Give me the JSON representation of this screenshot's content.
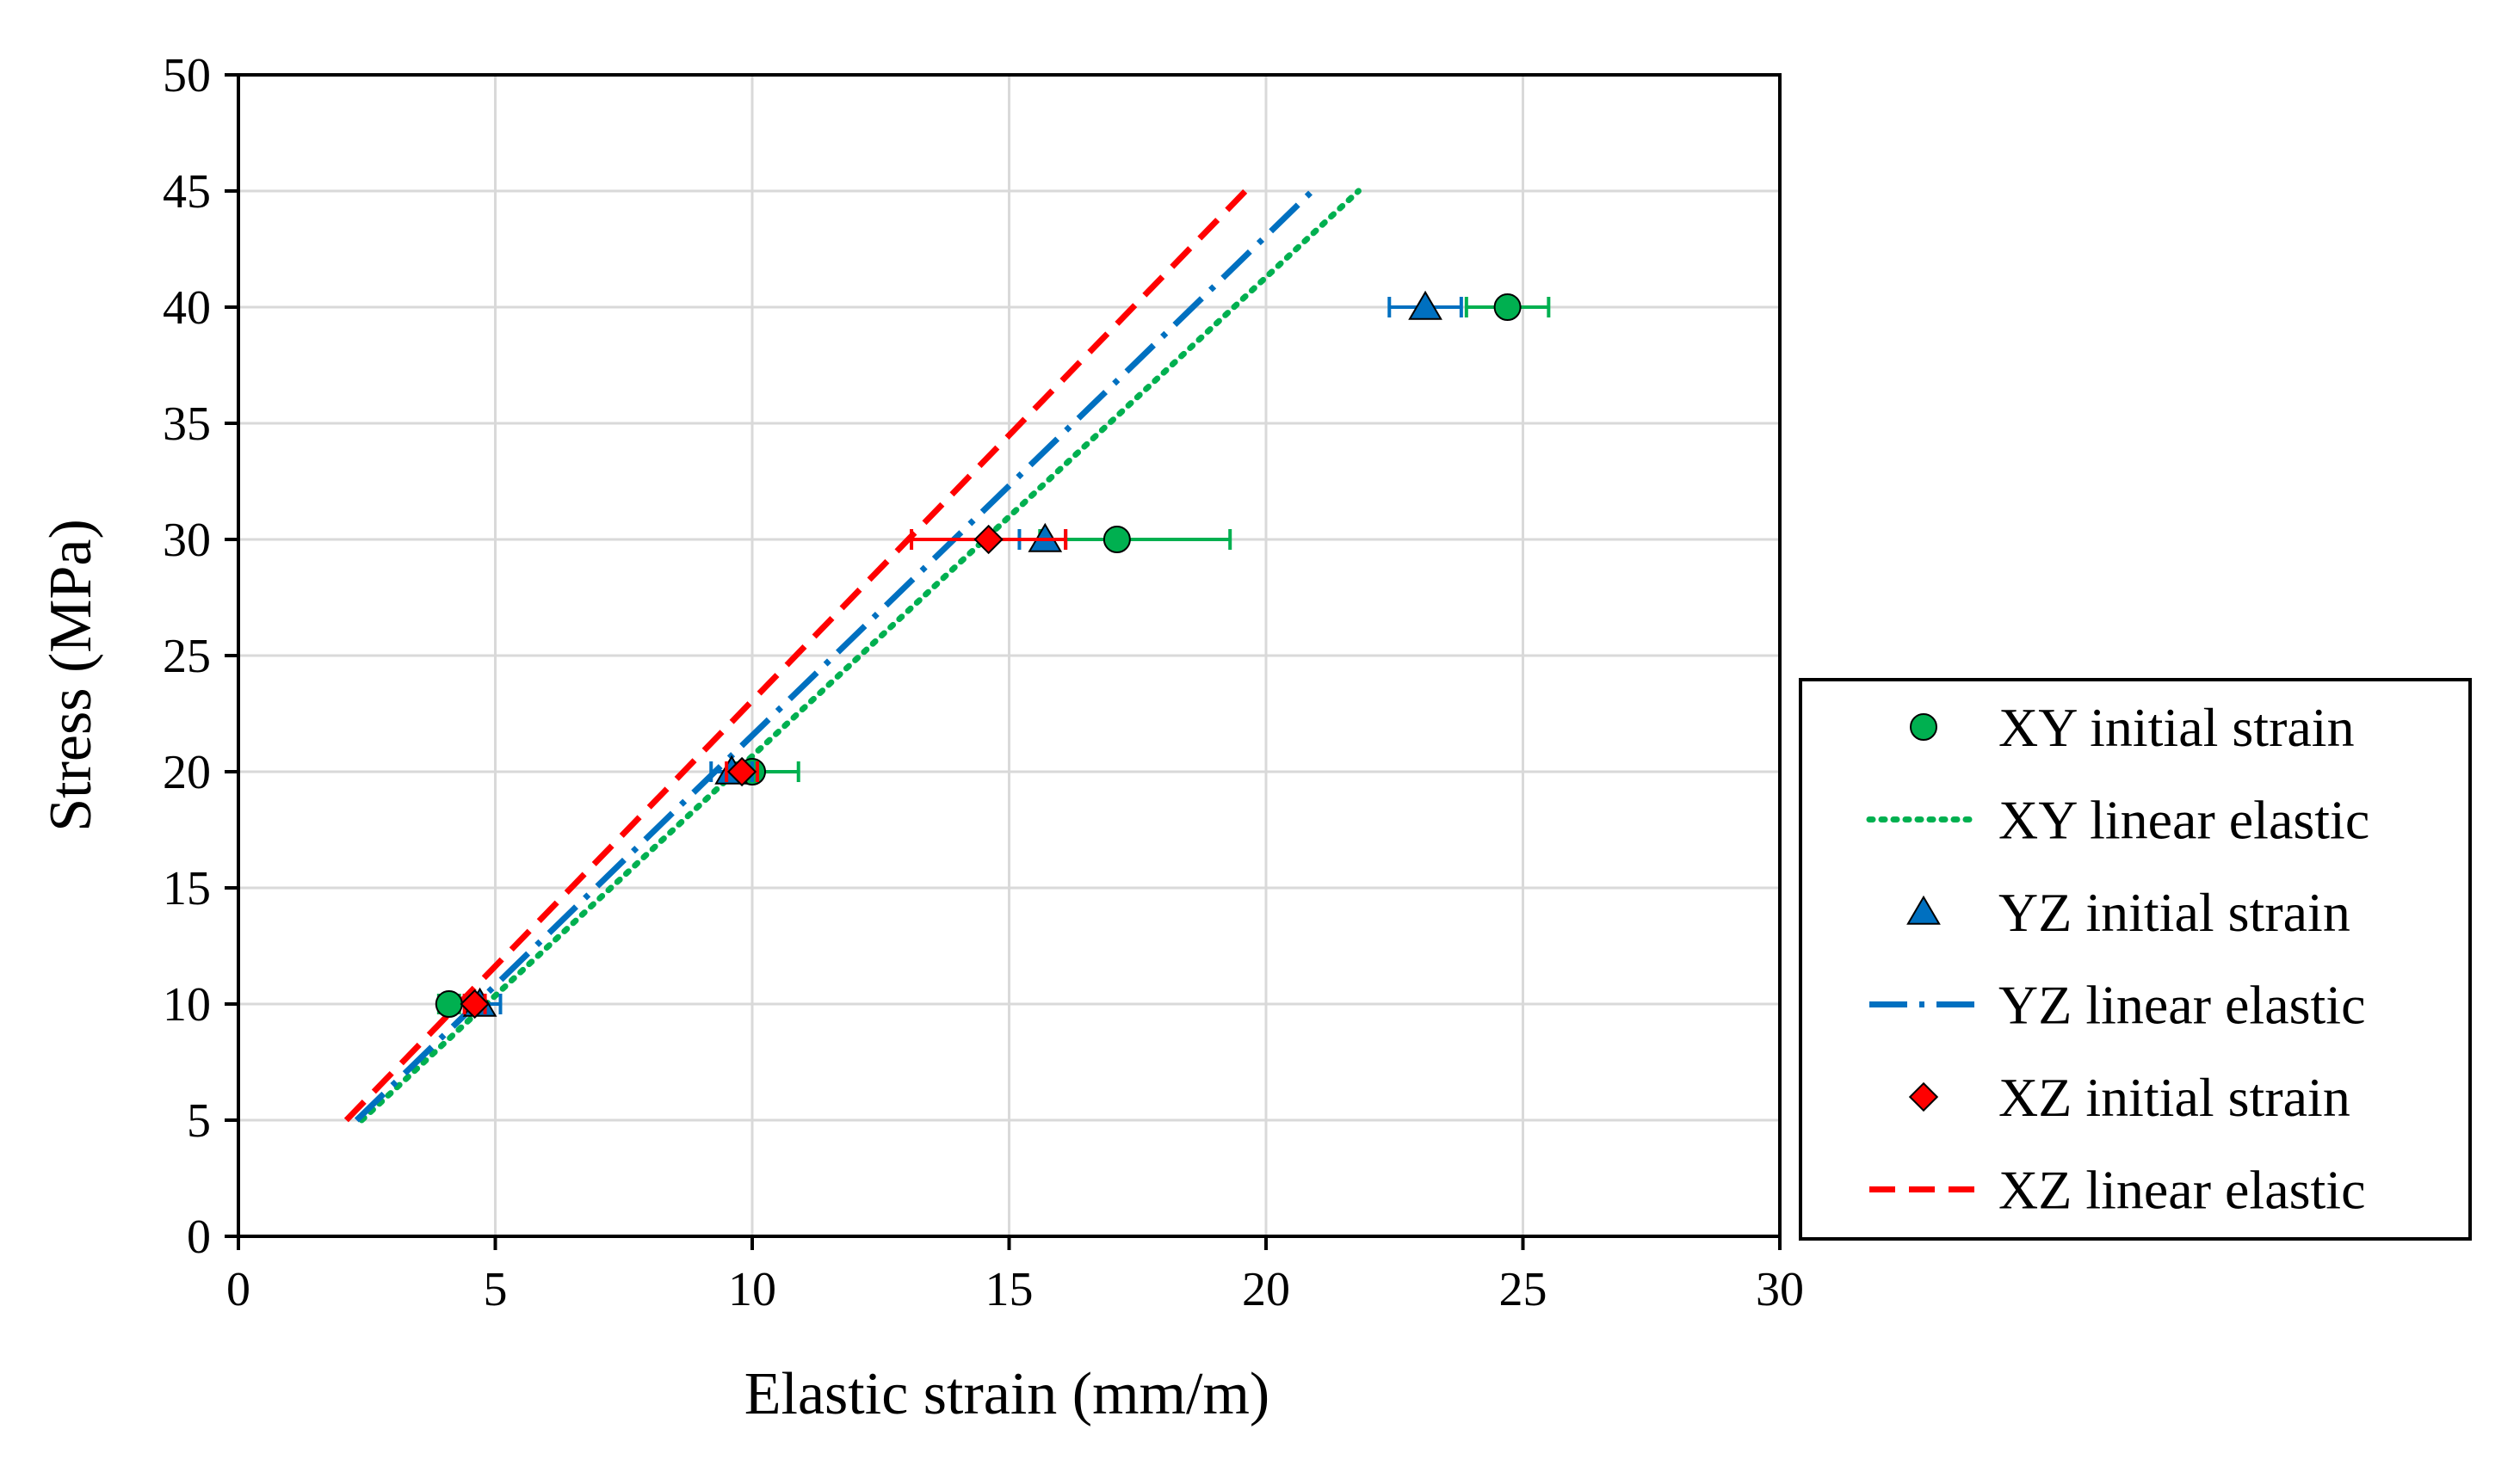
{
  "chart_data": {
    "type": "scatter",
    "xlabel": "Elastic strain (mm/m)",
    "ylabel": "Stress (MPa)",
    "xlim": [
      0,
      30
    ],
    "ylim": [
      0,
      50
    ],
    "xticks": [
      0,
      5,
      10,
      15,
      20,
      25,
      30
    ],
    "yticks": [
      0,
      5,
      10,
      15,
      20,
      25,
      30,
      35,
      40,
      45,
      50
    ],
    "grid": true,
    "legend_position": "right",
    "series": [
      {
        "name": "XY initial strain",
        "kind": "markers",
        "marker": "circle",
        "color": "#00B050",
        "points": [
          {
            "x": 4.1,
            "y": 10,
            "xerr_low": 0.2,
            "xerr_high": 0.2
          },
          {
            "x": 10.0,
            "y": 20,
            "xerr_low": 0.3,
            "xerr_high": 0.9
          },
          {
            "x": 17.1,
            "y": 30,
            "xerr_low": 1.5,
            "xerr_high": 2.2
          },
          {
            "x": 24.7,
            "y": 40,
            "xerr_low": 0.8,
            "xerr_high": 0.8
          }
        ]
      },
      {
        "name": "XY linear elastic",
        "kind": "line",
        "dash": "dotted",
        "color": "#00B050",
        "points": [
          {
            "x": 2.4,
            "y": 5
          },
          {
            "x": 21.8,
            "y": 45
          }
        ]
      },
      {
        "name": "YZ initial strain",
        "kind": "markers",
        "marker": "triangle",
        "color": "#0070C0",
        "points": [
          {
            "x": 4.7,
            "y": 10,
            "xerr_low": 0.3,
            "xerr_high": 0.4
          },
          {
            "x": 9.6,
            "y": 20,
            "xerr_low": 0.4,
            "xerr_high": 0.4
          },
          {
            "x": 15.7,
            "y": 30,
            "xerr_low": 0.5,
            "xerr_high": 0.4
          },
          {
            "x": 23.1,
            "y": 40,
            "xerr_low": 0.7,
            "xerr_high": 0.7
          }
        ]
      },
      {
        "name": "YZ linear elastic",
        "kind": "line",
        "dash": "dashdot",
        "color": "#0070C0",
        "points": [
          {
            "x": 2.3,
            "y": 5
          },
          {
            "x": 20.9,
            "y": 45
          }
        ]
      },
      {
        "name": "XZ initial strain",
        "kind": "markers",
        "marker": "diamond",
        "color": "#FF0000",
        "points": [
          {
            "x": 4.6,
            "y": 10,
            "xerr_low": 0.2,
            "xerr_high": 0.2
          },
          {
            "x": 9.8,
            "y": 20,
            "xerr_low": 0.3,
            "xerr_high": 0.3
          },
          {
            "x": 14.6,
            "y": 30,
            "xerr_low": 1.5,
            "xerr_high": 1.5
          }
        ]
      },
      {
        "name": "XZ linear elastic",
        "kind": "line",
        "dash": "dashed",
        "color": "#FF0000",
        "points": [
          {
            "x": 2.1,
            "y": 5
          },
          {
            "x": 19.6,
            "y": 45
          }
        ]
      }
    ]
  }
}
